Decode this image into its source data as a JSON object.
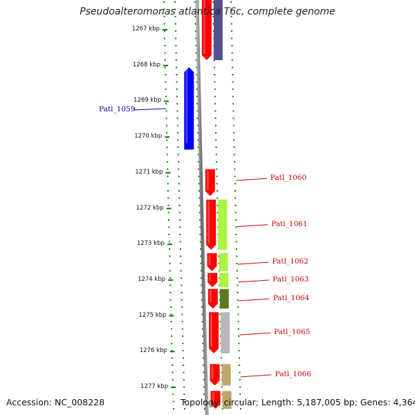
{
  "title": "Pseudoalteromonas atlantica T6c, complete genome",
  "footer": {
    "accession": "Accession: NC_008228",
    "summary": "Topology: circular; Length: 5,187,005 bp; Genes: 4,364"
  },
  "ruler": {
    "labels": [
      "1267 kbp",
      "1268 kbp",
      "1269 kbp",
      "1270 kbp",
      "1271 kbp",
      "1272 kbp",
      "1273 kbp",
      "1274 kbp",
      "1275 kbp",
      "1276 kbp",
      "1277 kbp"
    ],
    "tick_color": "#008000"
  },
  "genes": [
    {
      "label": "",
      "strand": "forward",
      "start_kbp": 1266.1,
      "end_kbp": 1267.85,
      "color": "#ff0000",
      "cog_color": "#53508f"
    },
    {
      "label": "Patl_1059",
      "strand": "reverse",
      "start_kbp": 1268.05,
      "end_kbp": 1270.35,
      "color": "#0000ff",
      "cog_color": ""
    },
    {
      "label": "Patl_1060",
      "strand": "forward",
      "start_kbp": 1270.9,
      "end_kbp": 1271.65,
      "color": "#ff0000",
      "cog_color": ""
    },
    {
      "label": "Patl_1061",
      "strand": "forward",
      "start_kbp": 1271.75,
      "end_kbp": 1273.15,
      "color": "#ff0000",
      "cog_color": "#a8f542"
    },
    {
      "label": "Patl_1062",
      "strand": "forward",
      "start_kbp": 1273.25,
      "end_kbp": 1273.75,
      "color": "#ff0000",
      "cog_color": "#a8f542"
    },
    {
      "label": "Patl_1063",
      "strand": "forward",
      "start_kbp": 1273.8,
      "end_kbp": 1274.2,
      "color": "#ff0000",
      "cog_color": "#a8f542"
    },
    {
      "label": "Patl_1064",
      "strand": "forward",
      "start_kbp": 1274.25,
      "end_kbp": 1274.8,
      "color": "#ff0000",
      "cog_color": "#5c7a1c"
    },
    {
      "label": "Patl_1065",
      "strand": "forward",
      "start_kbp": 1274.9,
      "end_kbp": 1276.05,
      "color": "#ff0000",
      "cog_color": "#b8b8b8"
    },
    {
      "label": "Patl_1066",
      "strand": "forward",
      "start_kbp": 1276.35,
      "end_kbp": 1276.95,
      "color": "#ff0000",
      "cog_color": "#bba86b"
    },
    {
      "label": "",
      "strand": "forward",
      "start_kbp": 1277.1,
      "end_kbp": 1277.6,
      "color": "#ff0000",
      "cog_color": "#bba86b"
    }
  ],
  "colors": {
    "forward_label": "#cc0000",
    "reverse_label": "#000099",
    "backbone": "#808080"
  }
}
